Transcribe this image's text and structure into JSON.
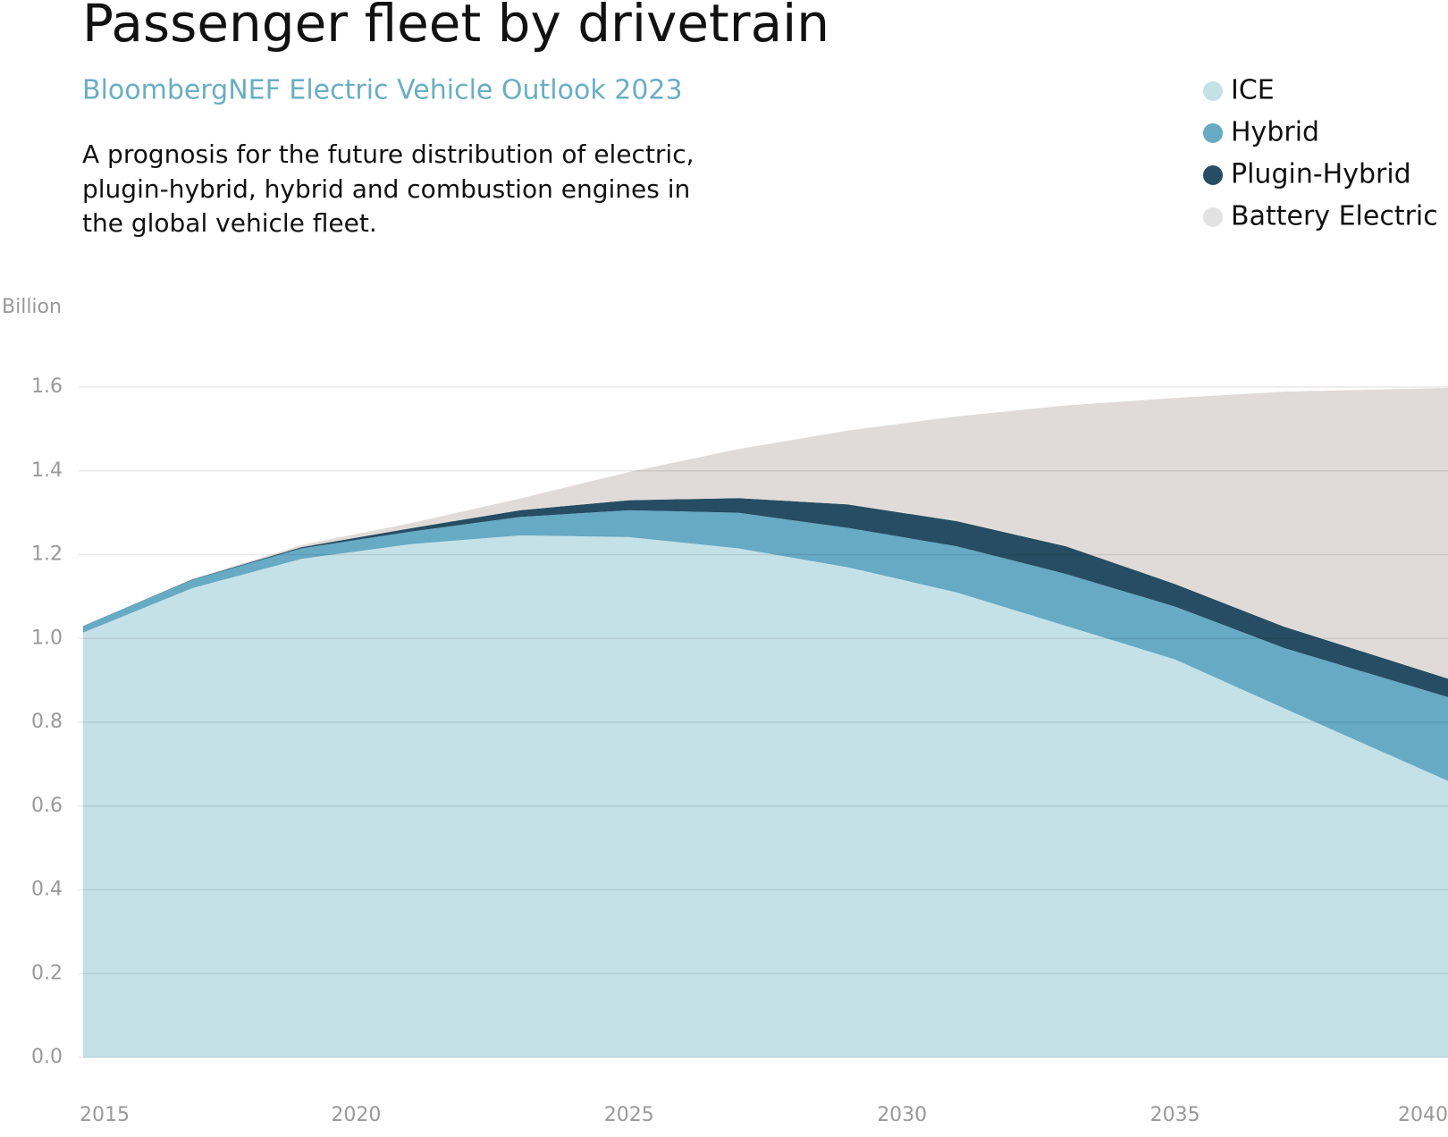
{
  "chart_data": {
    "type": "stacked_area",
    "title": "Passenger fleet by drivetrain",
    "subtitle": "BloombergNEF Electric Vehicle Outlook 2023",
    "description": [
      "A prognosis for the future distribution of electric,",
      "plugin-hybrid, hybrid and combustion engines in",
      "the global vehicle fleet."
    ],
    "y_label": "Billion",
    "x": [
      2015,
      2017,
      2019,
      2021,
      2023,
      2025,
      2027,
      2029,
      2031,
      2033,
      2035,
      2037,
      2040
    ],
    "series": [
      {
        "name": "ICE",
        "color": "#c5e1e8",
        "values": [
          1.014,
          1.12,
          1.19,
          1.225,
          1.246,
          1.242,
          1.215,
          1.17,
          1.11,
          1.03,
          0.95,
          0.833,
          0.66
        ]
      },
      {
        "name": "Hybrid",
        "color": "#66aac4",
        "values": [
          0.016,
          0.02,
          0.025,
          0.03,
          0.044,
          0.064,
          0.085,
          0.094,
          0.11,
          0.124,
          0.126,
          0.144,
          0.2
        ]
      },
      {
        "name": "Plugin-Hybrid",
        "color": "#264d63",
        "values": [
          0,
          0.001,
          0.003,
          0.008,
          0.016,
          0.024,
          0.035,
          0.056,
          0.06,
          0.066,
          0.054,
          0.051,
          0.044
        ]
      },
      {
        "name": "Battery Electric",
        "color": "#e0dbd8",
        "values": [
          0,
          0,
          0.005,
          0.012,
          0.028,
          0.067,
          0.117,
          0.176,
          0.25,
          0.336,
          0.444,
          0.561,
          0.694
        ]
      }
    ],
    "xlim": [
      2015,
      2040
    ],
    "xticks": [
      2015,
      2020,
      2025,
      2030,
      2035,
      2040
    ],
    "ylim": [
      0,
      1.6
    ],
    "yticks": [
      {
        "value": 0,
        "label": "0.0"
      },
      0.2,
      0.4,
      0.6,
      0.8,
      {
        "value": 1,
        "label": "1.0"
      },
      1.2,
      1.4,
      1.6
    ],
    "grid": true,
    "legend": "top-right"
  }
}
